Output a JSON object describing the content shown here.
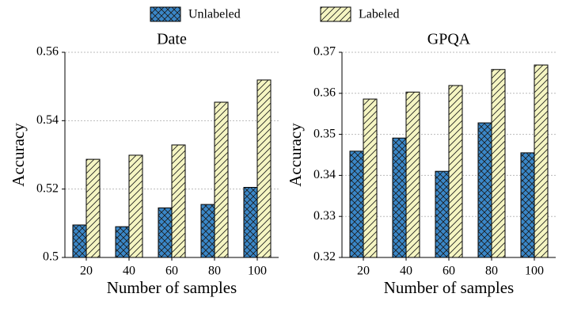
{
  "chart_data": [
    {
      "type": "bar",
      "title": "Date",
      "x_label": "Number of samples",
      "y_label": "Accuracy",
      "categories": [
        "20",
        "40",
        "60",
        "80",
        "100"
      ],
      "series": [
        {
          "name": "Unlabeled",
          "color": "#3a87c8",
          "hatch": "xx",
          "values": [
            0.5095,
            0.509,
            0.5145,
            0.5155,
            0.5205
          ]
        },
        {
          "name": "Labeled",
          "color": "#f5f5c2",
          "hatch": "//",
          "values": [
            0.5287,
            0.5299,
            0.5329,
            0.5454,
            0.5519
          ]
        }
      ],
      "ylim": [
        0.5,
        0.56
      ],
      "yticks": [
        0.5,
        0.52,
        0.54,
        0.56
      ],
      "grid": true
    },
    {
      "type": "bar",
      "title": "GPQA",
      "x_label": "Number of samples",
      "y_label": "Accuracy",
      "categories": [
        "20",
        "40",
        "60",
        "80",
        "100"
      ],
      "series": [
        {
          "name": "Unlabeled",
          "color": "#3a87c8",
          "hatch": "xx",
          "values": [
            0.3459,
            0.3491,
            0.341,
            0.3528,
            0.3455
          ]
        },
        {
          "name": "Labeled",
          "color": "#f5f5c2",
          "hatch": "//",
          "values": [
            0.3586,
            0.3603,
            0.3619,
            0.3658,
            0.3669
          ]
        }
      ],
      "ylim": [
        0.32,
        0.37
      ],
      "yticks": [
        0.32,
        0.33,
        0.34,
        0.35,
        0.36,
        0.37
      ],
      "grid": true
    }
  ]
}
